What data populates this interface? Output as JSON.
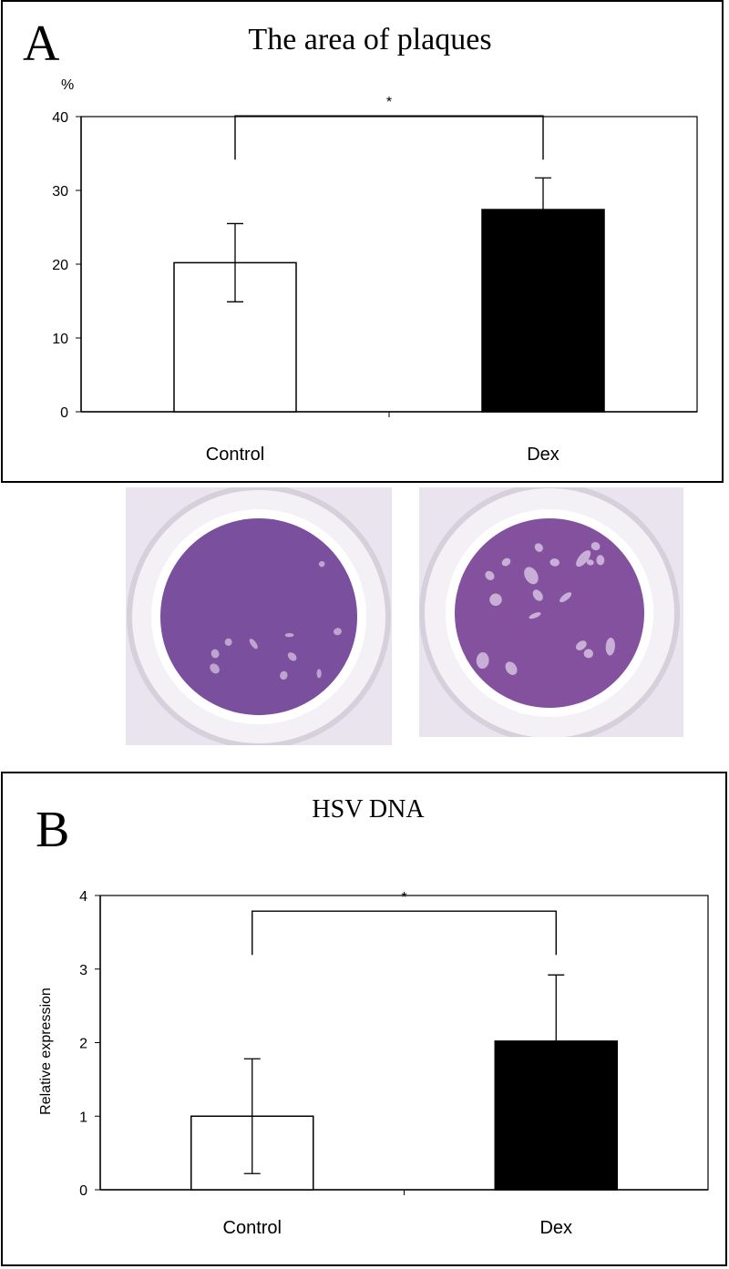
{
  "chart_data": [
    {
      "type": "bar",
      "panel_label": "A",
      "title": "The area of plaques",
      "ylabel": "%",
      "categories": [
        "Control",
        "Dex"
      ],
      "values": [
        20.2,
        27.4
      ],
      "errors": [
        5.3,
        4.3
      ],
      "bar_colors": [
        "#ffffff",
        "#000000"
      ],
      "ylim": [
        0,
        40
      ],
      "yticks": [
        0,
        10,
        20,
        30,
        40
      ],
      "significance": {
        "between": [
          "Control",
          "Dex"
        ],
        "label": "*"
      },
      "legend": "none",
      "grid": false
    },
    {
      "type": "bar",
      "panel_label": "B",
      "title": "HSV DNA",
      "ylabel": "Relative expression",
      "categories": [
        "Control",
        "Dex"
      ],
      "values": [
        1.0,
        2.02
      ],
      "errors": [
        0.78,
        0.9
      ],
      "bar_colors": [
        "#ffffff",
        "#000000"
      ],
      "ylim": [
        0,
        4
      ],
      "yticks": [
        0,
        1,
        2,
        3,
        4
      ],
      "significance": {
        "between": [
          "Control",
          "Dex"
        ],
        "label": "*"
      },
      "legend": "none",
      "grid": false
    }
  ],
  "photos": [
    {
      "name": "Control",
      "well_color": "#7a4f9e",
      "plaque_color": "#c9b4d8"
    },
    {
      "name": "Dex",
      "well_color": "#84519f",
      "plaque_color": "#d3c0de"
    }
  ]
}
